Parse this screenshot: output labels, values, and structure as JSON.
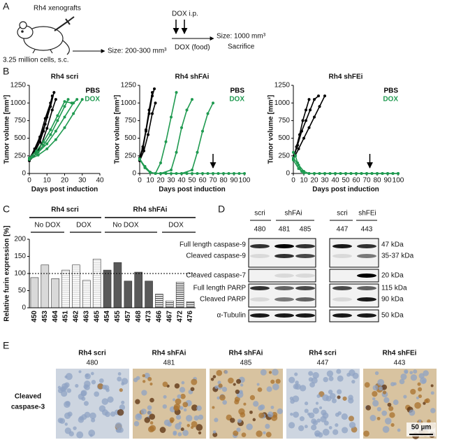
{
  "panels": [
    "A",
    "B",
    "C",
    "D",
    "E"
  ],
  "schematic": {
    "model": "Rh4 xenografts",
    "cells": "3.25 million cells, s.c.",
    "start": "Size: 200-300 mm³",
    "dox_ip": "DOX i.p.",
    "dox_food": "DOX (food)",
    "end": "Size: 1000 mm³",
    "sacrifice": "Sacrifice"
  },
  "chart_data": [
    {
      "type": "line",
      "title": "Rh4 scri",
      "xlabel": "Days post induction",
      "ylabel": "Tumor volume [mm³]",
      "xlim": [
        0,
        40
      ],
      "xticks": [
        0,
        10,
        20,
        30,
        40
      ],
      "ylim": [
        0,
        1250
      ],
      "yticks": [
        0,
        250,
        500,
        750,
        1000,
        1250
      ],
      "legend": [
        {
          "name": "PBS",
          "color": "#000000"
        },
        {
          "name": "DOX",
          "color": "#1f9a50"
        }
      ],
      "series": [
        {
          "color": "#000000",
          "x": [
            0,
            3,
            6,
            8,
            10,
            13
          ],
          "values": [
            200,
            300,
            450,
            600,
            800,
            1100
          ]
        },
        {
          "color": "#000000",
          "x": [
            0,
            3,
            6,
            9,
            12,
            14
          ],
          "values": [
            220,
            320,
            500,
            700,
            950,
            1150
          ]
        },
        {
          "color": "#000000",
          "x": [
            0,
            4,
            7,
            10,
            13,
            15
          ],
          "values": [
            180,
            280,
            420,
            640,
            900,
            1050
          ]
        },
        {
          "color": "#000000",
          "x": [
            0,
            3,
            6,
            9,
            12
          ],
          "values": [
            200,
            350,
            520,
            780,
            1000
          ]
        },
        {
          "color": "#1f9a50",
          "x": [
            0,
            4,
            8,
            12,
            16,
            20,
            22
          ],
          "values": [
            200,
            280,
            400,
            550,
            750,
            950,
            1050
          ]
        },
        {
          "color": "#1f9a50",
          "x": [
            0,
            5,
            10,
            15,
            20,
            25,
            27
          ],
          "values": [
            210,
            300,
            420,
            600,
            800,
            1000,
            1050
          ]
        },
        {
          "color": "#1f9a50",
          "x": [
            0,
            5,
            10,
            15,
            20,
            25,
            30
          ],
          "values": [
            200,
            260,
            350,
            480,
            650,
            850,
            1050
          ]
        },
        {
          "color": "#1f9a50",
          "x": [
            0,
            4,
            8,
            12,
            16,
            20,
            24
          ],
          "values": [
            220,
            320,
            450,
            620,
            820,
            1020,
            1000
          ]
        }
      ]
    },
    {
      "type": "line",
      "title": "Rh4 shFAi",
      "xlabel": "Days post induction",
      "ylabel": "Tumor volume [mm³]",
      "xlim": [
        0,
        100
      ],
      "xticks": [
        0,
        10,
        20,
        30,
        40,
        50,
        60,
        70,
        80,
        90,
        100
      ],
      "ylim": [
        0,
        1250
      ],
      "yticks": [
        0,
        250,
        500,
        750,
        1000,
        1250
      ],
      "legend": [
        {
          "name": "PBS",
          "color": "#000000"
        },
        {
          "name": "DOX",
          "color": "#1f9a50"
        }
      ],
      "arrows_x": [
        70
      ],
      "series": [
        {
          "color": "#000000",
          "x": [
            0,
            3,
            6,
            9,
            12,
            14
          ],
          "values": [
            200,
            350,
            600,
            850,
            1100,
            1200
          ]
        },
        {
          "color": "#000000",
          "x": [
            0,
            3,
            6,
            9,
            12
          ],
          "values": [
            220,
            380,
            620,
            900,
            1150
          ]
        },
        {
          "color": "#000000",
          "x": [
            0,
            4,
            8,
            12,
            15
          ],
          "values": [
            180,
            320,
            550,
            850,
            1000
          ]
        },
        {
          "color": "#1f9a50",
          "x": [
            0,
            5,
            10,
            15,
            20,
            25,
            30,
            35
          ],
          "values": [
            200,
            100,
            20,
            0,
            150,
            450,
            800,
            1150
          ]
        },
        {
          "color": "#1f9a50",
          "x": [
            0,
            5,
            10,
            20,
            30,
            35,
            40,
            45,
            50
          ],
          "values": [
            200,
            80,
            10,
            0,
            50,
            300,
            650,
            900,
            1050
          ]
        },
        {
          "color": "#1f9a50",
          "x": [
            0,
            5,
            10,
            20,
            40,
            50,
            55,
            60,
            65,
            70
          ],
          "values": [
            210,
            90,
            10,
            0,
            0,
            50,
            300,
            600,
            850,
            1000
          ]
        },
        {
          "color": "#1f9a50",
          "x": [
            0,
            5,
            10,
            15,
            20,
            25,
            30,
            35,
            40,
            45,
            50,
            55,
            60,
            65,
            70,
            75,
            80,
            85,
            90,
            95,
            100
          ],
          "values": [
            200,
            90,
            15,
            0,
            0,
            0,
            0,
            0,
            0,
            0,
            0,
            0,
            0,
            0,
            0,
            0,
            0,
            0,
            0,
            0,
            0
          ]
        }
      ]
    },
    {
      "type": "line",
      "title": "Rh4 shFEi",
      "xlabel": "Days post induction",
      "ylabel": "Tumor volume [mm³]",
      "xlim": [
        0,
        100
      ],
      "xticks": [
        0,
        10,
        20,
        30,
        40,
        50,
        60,
        70,
        80,
        90,
        100
      ],
      "ylim": [
        0,
        1250
      ],
      "yticks": [
        0,
        250,
        500,
        750,
        1000,
        1250
      ],
      "legend": [
        {
          "name": "PBS",
          "color": "#000000"
        },
        {
          "name": "DOX",
          "color": "#1f9a50"
        }
      ],
      "arrows_x": [
        73
      ],
      "series": [
        {
          "color": "#000000",
          "x": [
            0,
            5,
            10,
            15,
            20,
            25,
            30
          ],
          "values": [
            200,
            350,
            500,
            650,
            800,
            950,
            1100
          ]
        },
        {
          "color": "#000000",
          "x": [
            0,
            4,
            8,
            12,
            16,
            20,
            24
          ],
          "values": [
            220,
            400,
            600,
            750,
            900,
            1050,
            1100
          ]
        },
        {
          "color": "#000000",
          "x": [
            0,
            3,
            6,
            9,
            12,
            15
          ],
          "values": [
            200,
            380,
            550,
            750,
            900,
            1050
          ]
        },
        {
          "color": "#1f9a50",
          "x": [
            0,
            2,
            4,
            6,
            8,
            10
          ],
          "values": [
            300,
            250,
            150,
            80,
            30,
            10
          ]
        },
        {
          "color": "#1f9a50",
          "x": [
            0,
            5,
            10,
            15,
            20,
            25,
            30,
            35,
            40,
            45,
            50,
            55,
            60,
            65,
            70,
            75,
            80,
            85,
            90,
            95,
            100
          ],
          "values": [
            220,
            120,
            30,
            0,
            0,
            0,
            0,
            0,
            0,
            0,
            0,
            0,
            0,
            0,
            0,
            0,
            0,
            0,
            0,
            0,
            0
          ]
        },
        {
          "color": "#1f9a50",
          "x": [
            0,
            5,
            10,
            15,
            20,
            25,
            30,
            35,
            40,
            45,
            50,
            55,
            60,
            65,
            70,
            75,
            80,
            85,
            90,
            95,
            100
          ],
          "values": [
            190,
            70,
            5,
            0,
            0,
            0,
            0,
            0,
            0,
            0,
            0,
            0,
            0,
            0,
            0,
            0,
            0,
            0,
            0,
            0,
            0
          ]
        }
      ]
    },
    {
      "type": "bar",
      "ylabel": "Relative furin expression [%]",
      "categories": [
        "450",
        "453",
        "464",
        "451",
        "462",
        "463",
        "465",
        "454",
        "455",
        "457",
        "468",
        "473",
        "466",
        "467",
        "472",
        "476"
      ],
      "values": [
        88,
        125,
        85,
        110,
        125,
        80,
        142,
        110,
        132,
        78,
        104,
        78,
        40,
        20,
        75,
        18
      ],
      "colors": [
        "#d9d9d9",
        "#d9d9d9",
        "#d9d9d9",
        "#d9d9d9",
        "#d9d9d9",
        "#d9d9d9",
        "#d9d9d9",
        "#595959",
        "#595959",
        "#595959",
        "#595959",
        "#595959",
        "#595959",
        "#595959",
        "#595959",
        "#595959"
      ],
      "hatched": [
        false,
        false,
        false,
        true,
        true,
        true,
        true,
        false,
        false,
        false,
        false,
        false,
        true,
        true,
        true,
        true
      ],
      "ylim": [
        0,
        200
      ],
      "yticks": [
        0,
        50,
        100,
        150,
        200
      ],
      "reference_line": 100
    }
  ],
  "panel_c_headers": {
    "groups": [
      "Rh4 scri",
      "Rh4 shFAi"
    ],
    "treatments": [
      "No DOX",
      "DOX",
      "No DOX",
      "DOX"
    ]
  },
  "western": {
    "groups": [
      "scri",
      "shFAi",
      "scri",
      "shFEi"
    ],
    "lanes": [
      "480",
      "481",
      "485",
      "447",
      "443"
    ],
    "rows": [
      "Full length caspase-9",
      "Cleaved caspase-9",
      "Cleaved caspase-7",
      "Full length PARP",
      "Cleaved PARP",
      "α-Tubulin"
    ],
    "sizes": [
      "47 kDa",
      "35-37 kDa",
      "20 kDa",
      "115 kDa",
      "90 kDa",
      "50 kDa"
    ]
  },
  "ihc": {
    "titles": [
      "Rh4 scri",
      "Rh4 shFAi",
      "Rh4 shFAi",
      "Rh4 scri",
      "Rh4 shFEi"
    ],
    "samples": [
      "480",
      "481",
      "485",
      "447",
      "443"
    ],
    "row_label": [
      "Cleaved",
      "caspase-3"
    ],
    "scale_bar": "50 µm"
  }
}
